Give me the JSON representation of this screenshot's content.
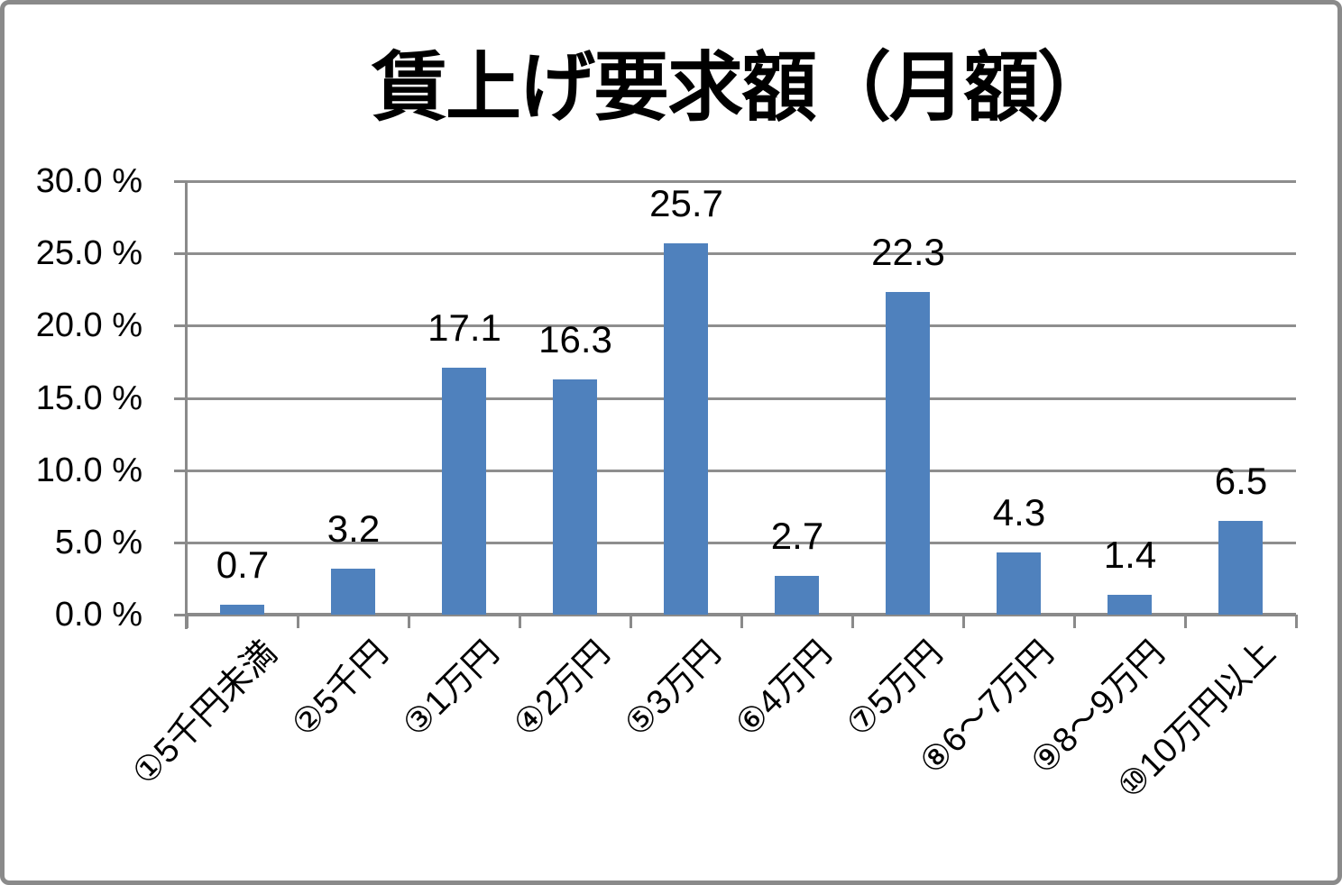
{
  "chart": {
    "background_color": "#ffffff",
    "frame_border_color": "#8a8a8a",
    "bar_color": "#4f81bd",
    "grid_color": "#8e8e8e",
    "axis_color": "#8a8a8a",
    "text_color": "#000000"
  },
  "chart_data": {
    "type": "bar",
    "title": "賃上げ要求額（月額）",
    "categories": [
      "①5千円未満",
      "②5千円",
      "③1万円",
      "④2万円",
      "⑤3万円",
      "⑥4万円",
      "⑦5万円",
      "⑧6～7万円",
      "⑨8～9万円",
      "⑩10万円以上"
    ],
    "values": [
      0.7,
      3.2,
      17.1,
      16.3,
      25.7,
      2.7,
      22.3,
      4.3,
      1.4,
      6.5
    ],
    "data_labels": [
      "0.7",
      "3.2",
      "17.1",
      "16.3",
      "25.7",
      "2.7",
      "22.3",
      "4.3",
      "1.4",
      "6.5"
    ],
    "xlabel": "",
    "ylabel": "",
    "ylim": [
      0,
      30
    ],
    "yticks": [
      30,
      25,
      20,
      15,
      10,
      5,
      0
    ],
    "ytick_labels": [
      "30.0 %",
      "25.0 %",
      "20.0 %",
      "15.0 %",
      "10.0 %",
      "5.0 %",
      "0.0 %"
    ],
    "grid": true,
    "legend": false,
    "data_label_position": "outside-end",
    "x_label_rotation_deg": 45
  }
}
